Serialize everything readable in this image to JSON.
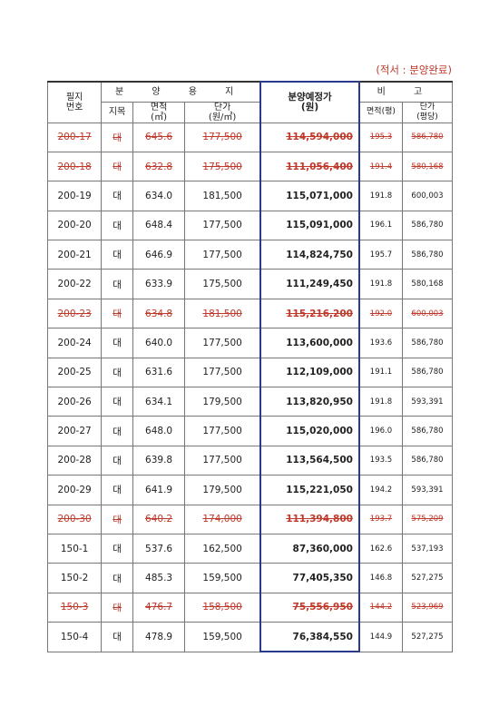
{
  "note": "(적서 : 분양완료)",
  "header": {
    "lot_no": "필지\n번호",
    "group_sale": "분 양 용 지",
    "land_type": "지목",
    "area": "면적\n(㎡)",
    "unit_price": "단가\n(원/㎡)",
    "planned_price": "분양예정가\n(원)",
    "group_remarks": "비 고",
    "area_pyeong": "면적(평)",
    "unit_price_pyeong": "단가\n(평당)"
  },
  "rows": [
    {
      "lot": "200-17",
      "type": "대",
      "area": "645.6",
      "unit_price": "177,500",
      "price": "114,594,000",
      "pyeong": "195.3",
      "per_pyeong": "586,780",
      "sold": true
    },
    {
      "lot": "200-18",
      "type": "대",
      "area": "632.8",
      "unit_price": "175,500",
      "price": "111,056,400",
      "pyeong": "191.4",
      "per_pyeong": "580,168",
      "sold": true
    },
    {
      "lot": "200-19",
      "type": "대",
      "area": "634.0",
      "unit_price": "181,500",
      "price": "115,071,000",
      "pyeong": "191.8",
      "per_pyeong": "600,003",
      "sold": false
    },
    {
      "lot": "200-20",
      "type": "대",
      "area": "648.4",
      "unit_price": "177,500",
      "price": "115,091,000",
      "pyeong": "196.1",
      "per_pyeong": "586,780",
      "sold": false
    },
    {
      "lot": "200-21",
      "type": "대",
      "area": "646.9",
      "unit_price": "177,500",
      "price": "114,824,750",
      "pyeong": "195.7",
      "per_pyeong": "586,780",
      "sold": false
    },
    {
      "lot": "200-22",
      "type": "대",
      "area": "633.9",
      "unit_price": "175,500",
      "price": "111,249,450",
      "pyeong": "191.8",
      "per_pyeong": "580,168",
      "sold": false
    },
    {
      "lot": "200-23",
      "type": "대",
      "area": "634.8",
      "unit_price": "181,500",
      "price": "115,216,200",
      "pyeong": "192.0",
      "per_pyeong": "600,003",
      "sold": true
    },
    {
      "lot": "200-24",
      "type": "대",
      "area": "640.0",
      "unit_price": "177,500",
      "price": "113,600,000",
      "pyeong": "193.6",
      "per_pyeong": "586,780",
      "sold": false
    },
    {
      "lot": "200-25",
      "type": "대",
      "area": "631.6",
      "unit_price": "177,500",
      "price": "112,109,000",
      "pyeong": "191.1",
      "per_pyeong": "586,780",
      "sold": false
    },
    {
      "lot": "200-26",
      "type": "대",
      "area": "634.1",
      "unit_price": "179,500",
      "price": "113,820,950",
      "pyeong": "191.8",
      "per_pyeong": "593,391",
      "sold": false
    },
    {
      "lot": "200-27",
      "type": "대",
      "area": "648.0",
      "unit_price": "177,500",
      "price": "115,020,000",
      "pyeong": "196.0",
      "per_pyeong": "586,780",
      "sold": false
    },
    {
      "lot": "200-28",
      "type": "대",
      "area": "639.8",
      "unit_price": "177,500",
      "price": "113,564,500",
      "pyeong": "193.5",
      "per_pyeong": "586,780",
      "sold": false
    },
    {
      "lot": "200-29",
      "type": "대",
      "area": "641.9",
      "unit_price": "179,500",
      "price": "115,221,050",
      "pyeong": "194.2",
      "per_pyeong": "593,391",
      "sold": false
    },
    {
      "lot": "200-30",
      "type": "대",
      "area": "640.2",
      "unit_price": "174,000",
      "price": "111,394,800",
      "pyeong": "193.7",
      "per_pyeong": "575,209",
      "sold": true
    },
    {
      "lot": "150-1",
      "type": "대",
      "area": "537.6",
      "unit_price": "162,500",
      "price": "87,360,000",
      "pyeong": "162.6",
      "per_pyeong": "537,193",
      "sold": false
    },
    {
      "lot": "150-2",
      "type": "대",
      "area": "485.3",
      "unit_price": "159,500",
      "price": "77,405,350",
      "pyeong": "146.8",
      "per_pyeong": "527,275",
      "sold": false
    },
    {
      "lot": "150-3",
      "type": "대",
      "area": "476.7",
      "unit_price": "158,500",
      "price": "75,556,950",
      "pyeong": "144.2",
      "per_pyeong": "523,969",
      "sold": true
    },
    {
      "lot": "150-4",
      "type": "대",
      "area": "478.9",
      "unit_price": "159,500",
      "price": "76,384,550",
      "pyeong": "144.9",
      "per_pyeong": "527,275",
      "sold": false
    }
  ],
  "colors": {
    "sold_text": "#c0392b",
    "highlight_border": "#2a3a8c"
  }
}
